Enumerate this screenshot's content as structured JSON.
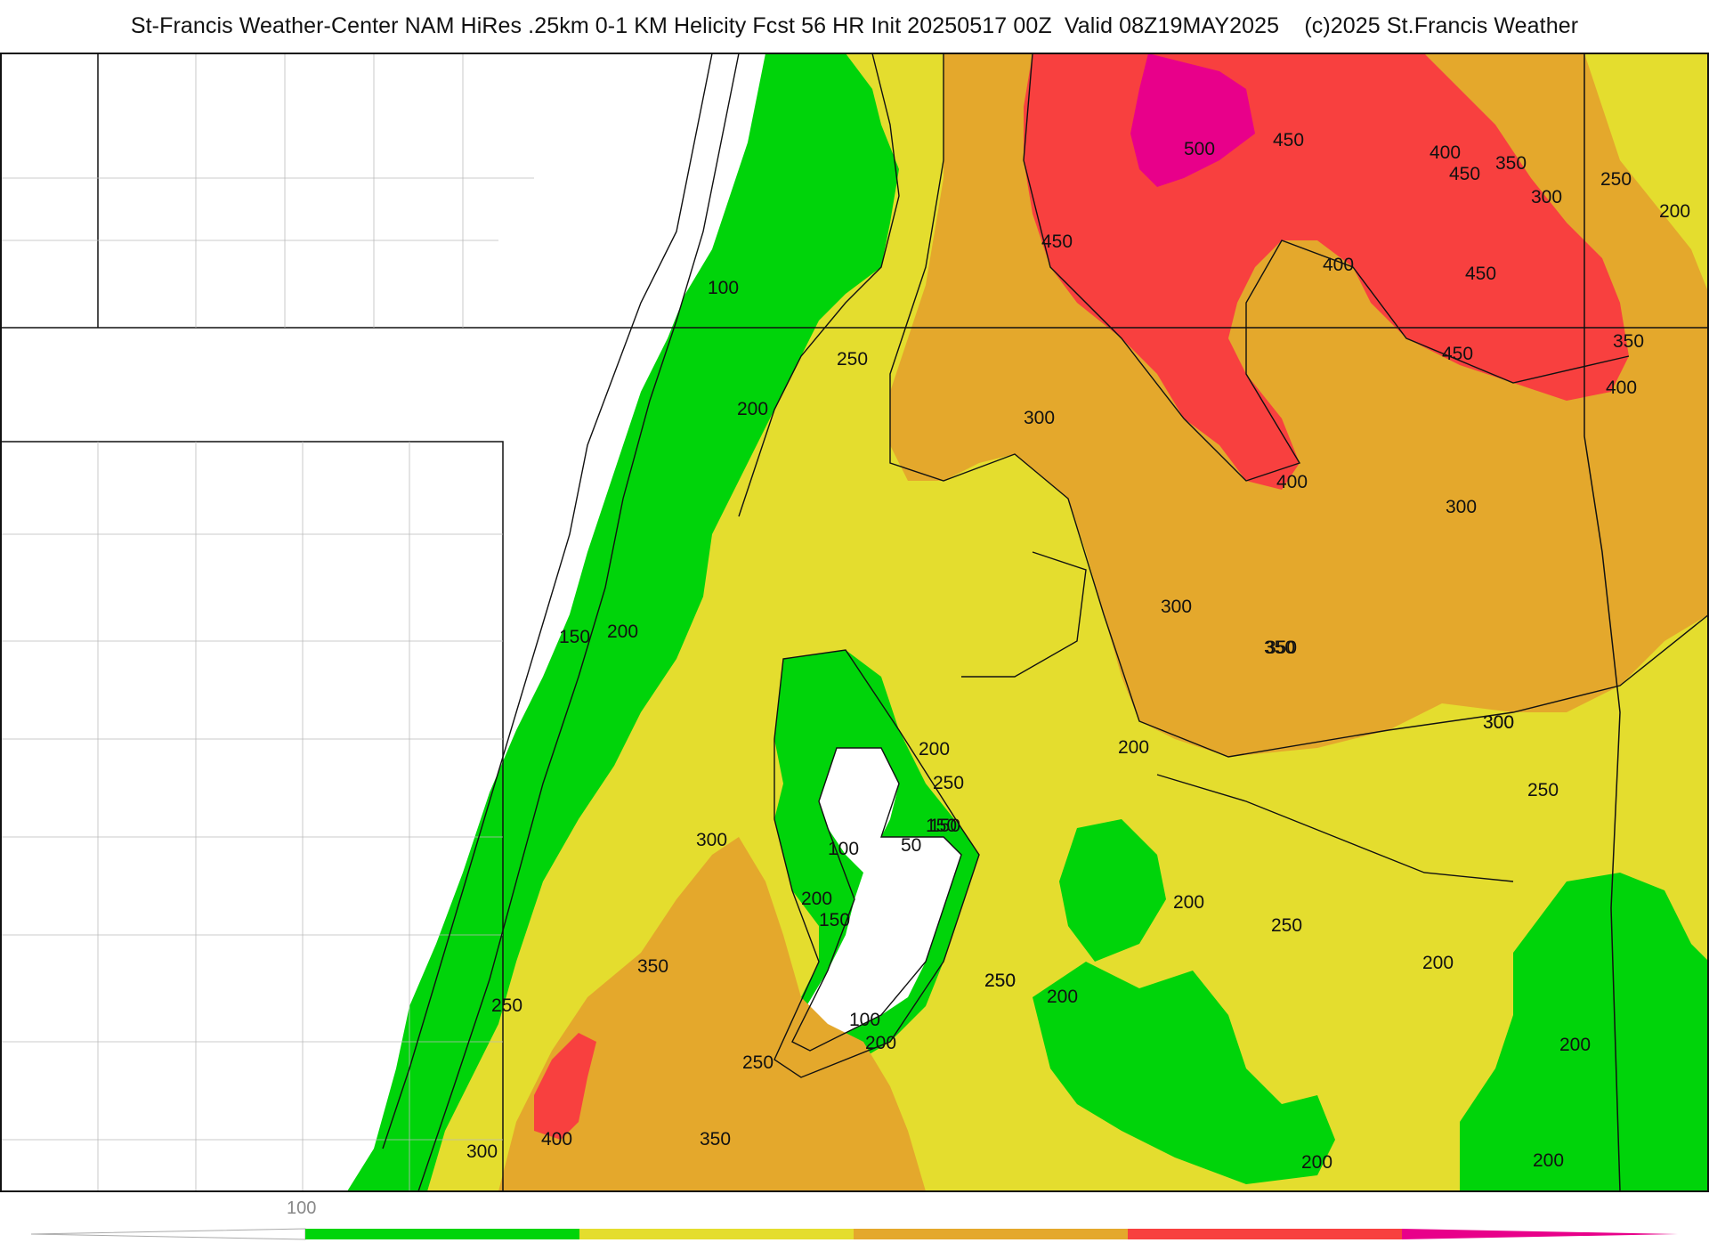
{
  "header": {
    "title": "St-Francis Weather-Center NAM HiRes .25km 0-1 KM Helicity Fcst 56 HR Init 20250517 00Z  Valid 08Z19MAY2025    (c)2025 St.Francis Weather"
  },
  "map": {
    "field": "0-1 KM Helicity",
    "contour_labels": [
      "100",
      "200",
      "250",
      "300",
      "450",
      "500",
      "450",
      "400",
      "350",
      "450",
      "400",
      "300",
      "250",
      "200",
      "450",
      "450",
      "350",
      "400",
      "300",
      "400",
      "350",
      "300",
      "200",
      "250",
      "150",
      "200",
      "300",
      "350",
      "300",
      "250",
      "50",
      "100",
      "150",
      "200",
      "150",
      "200",
      "250",
      "200",
      "250",
      "200",
      "300",
      "350",
      "300",
      "400",
      "350",
      "250",
      "100",
      "200",
      "200",
      "200",
      "250",
      "250",
      "200",
      "200",
      "150"
    ]
  },
  "colors": {
    "band_100_200": "#00d40a",
    "band_200_300": "#e4dd2e",
    "band_300_400": "#e4a82c",
    "band_400_500": "#f8403f",
    "band_500_plus": "#e8008a",
    "below_100": "#ffffff"
  },
  "colorbar": {
    "tick_label": "100",
    "segments": [
      "#00d40a",
      "#e4dd2e",
      "#e4a82c",
      "#f8403f",
      "#e8008a"
    ]
  }
}
